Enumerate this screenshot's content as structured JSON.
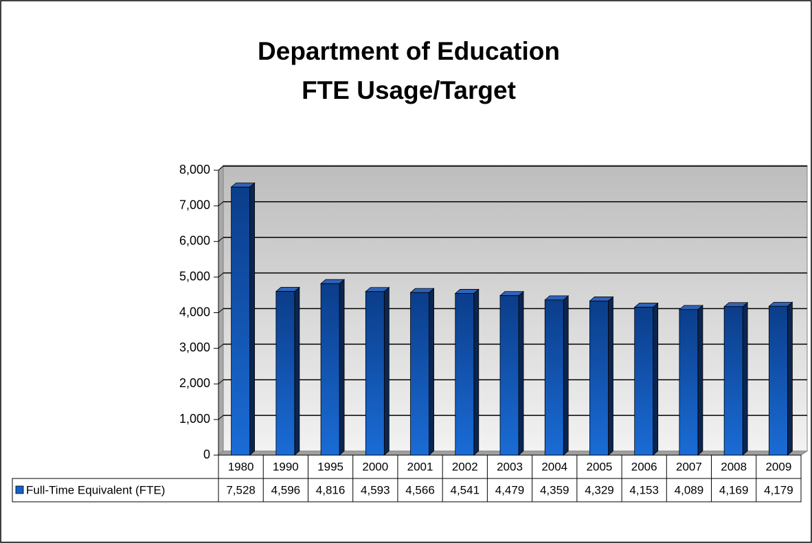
{
  "chart_data": {
    "type": "bar",
    "title": [
      "Department of Education",
      "FTE Usage/Target"
    ],
    "categories": [
      "1980",
      "1990",
      "1995",
      "2000",
      "2001",
      "2002",
      "2003",
      "2004",
      "2005",
      "2006",
      "2007",
      "2008",
      "2009"
    ],
    "series": [
      {
        "name": "Full-Time Equivalent (FTE)",
        "color": "#1560c8",
        "values": [
          7528,
          4596,
          4816,
          4593,
          4566,
          4541,
          4479,
          4359,
          4329,
          4153,
          4089,
          4169,
          4179
        ],
        "value_labels": [
          "7,528",
          "4,596",
          "4,816",
          "4,593",
          "4,566",
          "4,541",
          "4,479",
          "4,359",
          "4,329",
          "4,153",
          "4,089",
          "4,169",
          "4,179"
        ]
      }
    ],
    "ylim": [
      0,
      8000
    ],
    "yticks": [
      0,
      {
        "value": 1000,
        "label": "1,000"
      },
      {
        "value": 2000,
        "label": "2,000"
      },
      {
        "value": 3000,
        "label": "3,000"
      },
      {
        "value": 4000,
        "label": "4,000"
      },
      {
        "value": 5000,
        "label": "5,000"
      },
      {
        "value": 6000,
        "label": "6,000"
      },
      {
        "value": 7000,
        "label": "7,000"
      },
      {
        "value": 8000,
        "label": "8,000"
      }
    ],
    "grid": true
  }
}
